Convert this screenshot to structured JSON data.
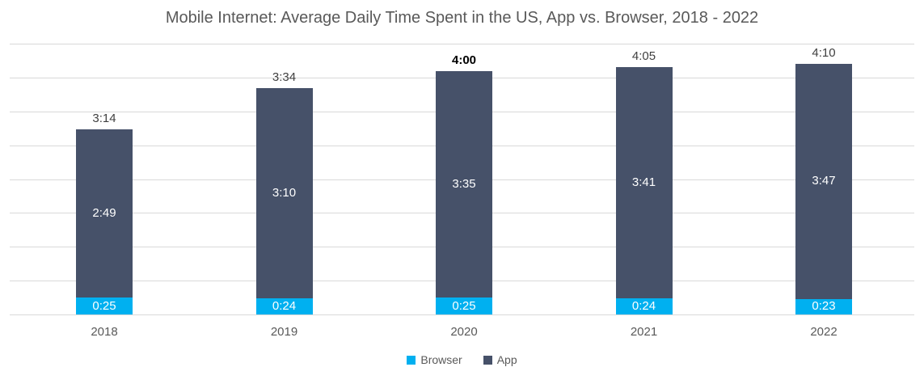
{
  "title": "Mobile Internet: Average Daily Time Spent in the US, App vs. Browser, 2018 - 2022",
  "chart_data": {
    "type": "bar",
    "stacked": true,
    "title": "Mobile Internet: Average Daily Time Spent in the US, App vs. Browser, 2018 - 2022",
    "categories": [
      "2018",
      "2019",
      "2020",
      "2021",
      "2022"
    ],
    "series": [
      {
        "name": "Browser",
        "color": "#00B0F0",
        "values": [
          "0:25",
          "0:24",
          "0:25",
          "0:24",
          "0:23"
        ]
      },
      {
        "name": "App",
        "color": "#465169",
        "values": [
          "2:49",
          "3:10",
          "3:35",
          "3:41",
          "3:47"
        ]
      }
    ],
    "totals": [
      {
        "label": "3:14",
        "bold": false
      },
      {
        "label": "3:34",
        "bold": false
      },
      {
        "label": "4:00",
        "bold": true
      },
      {
        "label": "4:05",
        "bold": false
      },
      {
        "label": "4:10",
        "bold": false
      }
    ],
    "value_format": "h:mm",
    "xlabel": "",
    "ylabel": "",
    "axis": {
      "min": 0,
      "max": 4.0,
      "gridline_step": 0.5,
      "tick_labels_visible": false
    },
    "gridlines": true,
    "legend_position": "bottom",
    "label_colors": {
      "inside_segment": "#ffffff",
      "total": "#404040",
      "total_emphasis": "#000000"
    },
    "gridline_color": "#d9d9d9",
    "text_color": "#595959"
  }
}
